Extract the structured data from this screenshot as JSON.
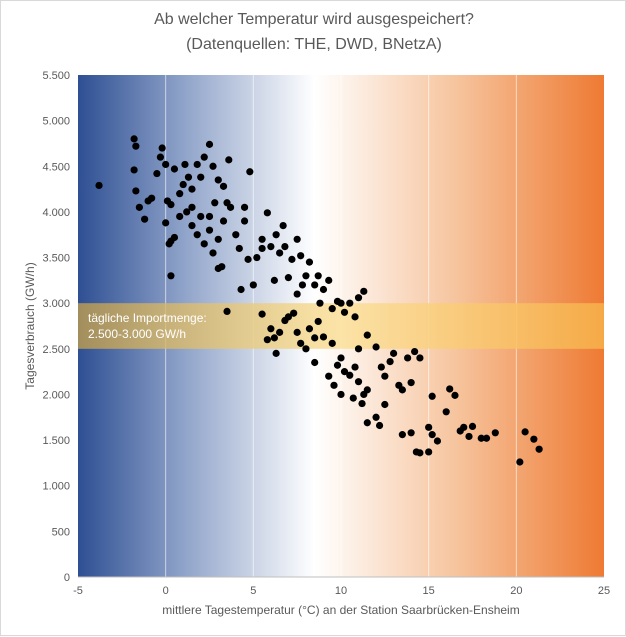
{
  "chart_data": {
    "type": "scatter",
    "title": "Ab welcher Temperatur wird ausgespeichert?",
    "subtitle": "(Datenquellen: THE, DWD, BNetzA)",
    "xlabel": "mittlere Tagestemperatur (°C) an der Station Saarbrücken-Ensheim",
    "ylabel": "Tagesverbrauch (GW/h)",
    "xlim": [
      -5,
      25
    ],
    "ylim": [
      0,
      5500
    ],
    "x_ticks": [
      -5,
      0,
      5,
      10,
      15,
      20,
      25
    ],
    "x_tick_labels": [
      "-5",
      "0",
      "5",
      "10",
      "15",
      "20",
      "25"
    ],
    "y_ticks": [
      0,
      500,
      1000,
      1500,
      2000,
      2500,
      3000,
      3500,
      4000,
      4500,
      5000,
      5500
    ],
    "y_tick_labels": [
      "0",
      "500",
      "1.000",
      "1.500",
      "2.000",
      "2.500",
      "3.000",
      "3.500",
      "4.000",
      "4.500",
      "5.000",
      "5.500"
    ],
    "grid": "vertical",
    "background_gradient": [
      "#2e4f93",
      "#ffffff",
      "#ee7a33"
    ],
    "band": {
      "y_range": [
        2500,
        3000
      ],
      "label_line1": "tägliche Importmenge:",
      "label_line2": "2.500-3.000 GW/h",
      "color": "#f5b84a"
    },
    "marker_color": "#000000",
    "points": [
      [
        -3.8,
        4290
      ],
      [
        -1.8,
        4800
      ],
      [
        -1.7,
        4720
      ],
      [
        -1.8,
        4460
      ],
      [
        -1.7,
        4230
      ],
      [
        -1.5,
        4050
      ],
      [
        -1.0,
        4120
      ],
      [
        -1.2,
        3920
      ],
      [
        -0.8,
        4150
      ],
      [
        -0.5,
        4420
      ],
      [
        -0.3,
        4600
      ],
      [
        -0.2,
        4700
      ],
      [
        0.0,
        4520
      ],
      [
        0.1,
        4120
      ],
      [
        0.3,
        4080
      ],
      [
        0.5,
        4470
      ],
      [
        0.8,
        4200
      ],
      [
        1.0,
        4300
      ],
      [
        1.1,
        4520
      ],
      [
        1.3,
        4380
      ],
      [
        1.5,
        4250
      ],
      [
        1.8,
        4520
      ],
      [
        2.0,
        4380
      ],
      [
        2.2,
        4600
      ],
      [
        2.5,
        4740
      ],
      [
        2.7,
        4500
      ],
      [
        3.0,
        4350
      ],
      [
        3.3,
        4280
      ],
      [
        3.6,
        4570
      ],
      [
        0.0,
        3880
      ],
      [
        0.3,
        3680
      ],
      [
        0.2,
        3650
      ],
      [
        0.5,
        3720
      ],
      [
        0.3,
        3300
      ],
      [
        0.8,
        3950
      ],
      [
        1.2,
        4000
      ],
      [
        1.5,
        4050
      ],
      [
        1.5,
        3850
      ],
      [
        1.8,
        3750
      ],
      [
        2.0,
        3950
      ],
      [
        2.2,
        3650
      ],
      [
        2.5,
        3800
      ],
      [
        2.7,
        3550
      ],
      [
        2.5,
        3950
      ],
      [
        2.8,
        4100
      ],
      [
        3.0,
        3700
      ],
      [
        3.2,
        3400
      ],
      [
        3.0,
        3380
      ],
      [
        3.3,
        3900
      ],
      [
        3.5,
        4100
      ],
      [
        3.7,
        4050
      ],
      [
        4.0,
        3750
      ],
      [
        4.2,
        3600
      ],
      [
        4.5,
        3900
      ],
      [
        4.5,
        4050
      ],
      [
        4.3,
        3150
      ],
      [
        4.7,
        3480
      ],
      [
        4.8,
        4440
      ],
      [
        5.0,
        3200
      ],
      [
        5.2,
        3500
      ],
      [
        5.5,
        3700
      ],
      [
        5.5,
        3600
      ],
      [
        5.8,
        3990
      ],
      [
        6.0,
        3620
      ],
      [
        6.2,
        3250
      ],
      [
        6.3,
        3750
      ],
      [
        6.5,
        3550
      ],
      [
        6.7,
        3850
      ],
      [
        6.8,
        3620
      ],
      [
        7.0,
        3280
      ],
      [
        7.2,
        3480
      ],
      [
        7.5,
        3100
      ],
      [
        7.5,
        3700
      ],
      [
        7.7,
        3520
      ],
      [
        7.8,
        3200
      ],
      [
        8.0,
        3300
      ],
      [
        8.2,
        3450
      ],
      [
        8.5,
        3200
      ],
      [
        8.7,
        3300
      ],
      [
        8.8,
        3000
      ],
      [
        9.0,
        3150
      ],
      [
        9.3,
        3250
      ],
      [
        9.5,
        2940
      ],
      [
        9.8,
        3020
      ],
      [
        10.0,
        3000
      ],
      [
        10.2,
        2900
      ],
      [
        10.5,
        3000
      ],
      [
        10.8,
        2850
      ],
      [
        11.0,
        3060
      ],
      [
        11.3,
        3130
      ],
      [
        5.5,
        2880
      ],
      [
        6.0,
        2720
      ],
      [
        6.2,
        2620
      ],
      [
        6.3,
        2450
      ],
      [
        6.5,
        2680
      ],
      [
        6.8,
        2810
      ],
      [
        7.0,
        2850
      ],
      [
        7.5,
        2680
      ],
      [
        7.7,
        2560
      ],
      [
        8.0,
        2500
      ],
      [
        8.2,
        2720
      ],
      [
        8.5,
        2620
      ],
      [
        8.7,
        2800
      ],
      [
        9.0,
        2630
      ],
      [
        9.5,
        2560
      ],
      [
        9.8,
        2320
      ],
      [
        10.0,
        2400
      ],
      [
        10.2,
        2250
      ],
      [
        10.5,
        2210
      ],
      [
        10.8,
        2300
      ],
      [
        11.0,
        2140
      ],
      [
        11.3,
        2000
      ],
      [
        11.5,
        2050
      ],
      [
        11.0,
        2500
      ],
      [
        11.5,
        2650
      ],
      [
        12.0,
        2520
      ],
      [
        12.3,
        2300
      ],
      [
        12.5,
        2200
      ],
      [
        12.8,
        2360
      ],
      [
        13.0,
        2450
      ],
      [
        13.3,
        2100
      ],
      [
        13.5,
        2050
      ],
      [
        13.8,
        2400
      ],
      [
        14.0,
        2130
      ],
      [
        14.2,
        2470
      ],
      [
        14.5,
        2400
      ],
      [
        9.3,
        2200
      ],
      [
        9.6,
        2100
      ],
      [
        10.0,
        2000
      ],
      [
        10.7,
        1960
      ],
      [
        11.2,
        1900
      ],
      [
        11.5,
        1690
      ],
      [
        12.0,
        1750
      ],
      [
        12.2,
        1660
      ],
      [
        12.5,
        1890
      ],
      [
        13.5,
        1560
      ],
      [
        14.0,
        1580
      ],
      [
        14.3,
        1370
      ],
      [
        14.5,
        1360
      ],
      [
        15.0,
        1640
      ],
      [
        15.2,
        1560
      ],
      [
        15.0,
        1370
      ],
      [
        15.2,
        1980
      ],
      [
        15.5,
        1490
      ],
      [
        16.0,
        1810
      ],
      [
        16.2,
        2060
      ],
      [
        16.5,
        1990
      ],
      [
        16.8,
        1600
      ],
      [
        17.0,
        1640
      ],
      [
        17.3,
        1540
      ],
      [
        17.5,
        1650
      ],
      [
        18.0,
        1520
      ],
      [
        18.3,
        1520
      ],
      [
        18.8,
        1580
      ],
      [
        20.2,
        1260
      ],
      [
        20.5,
        1590
      ],
      [
        21.0,
        1510
      ],
      [
        21.3,
        1400
      ],
      [
        3.5,
        2910
      ],
      [
        5.8,
        2600
      ],
      [
        7.3,
        2890
      ],
      [
        8.5,
        2350
      ]
    ]
  }
}
